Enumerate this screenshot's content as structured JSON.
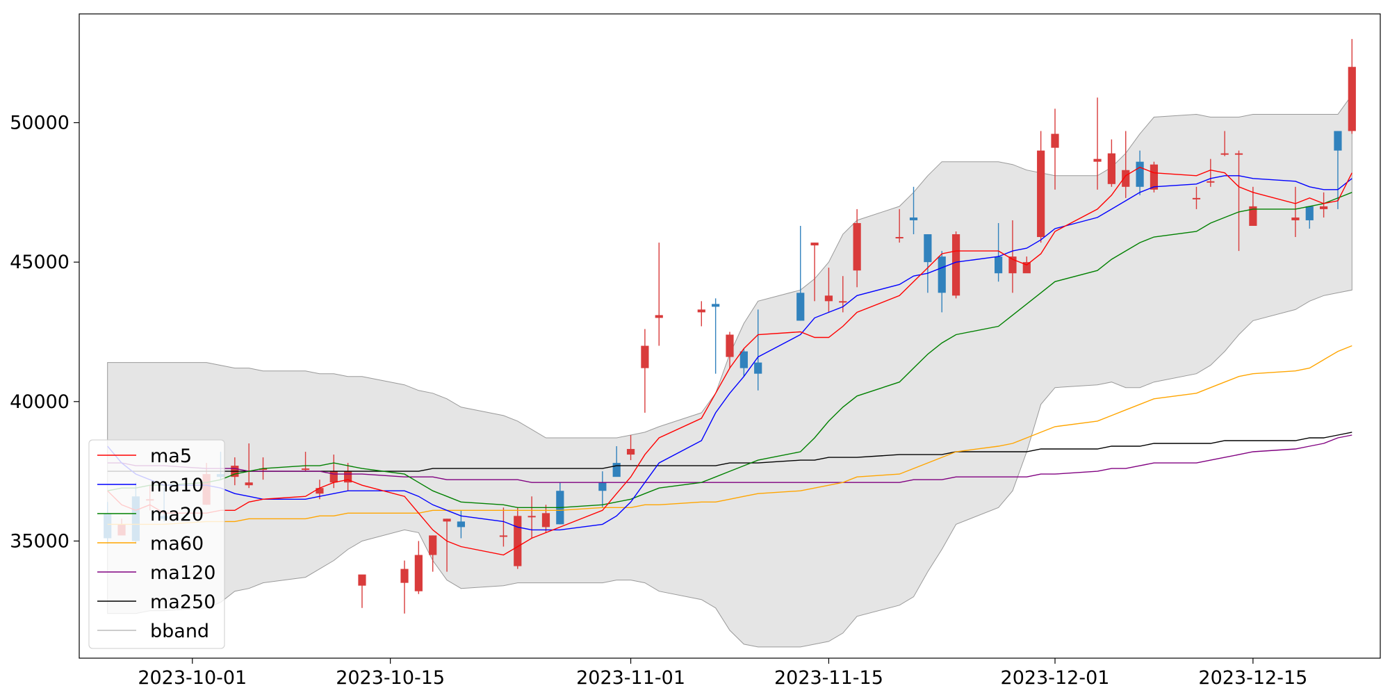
{
  "chart_data": {
    "type": "candlestick",
    "title": "",
    "xlabel": "",
    "ylabel": "",
    "x_range": [
      "2023-09-23",
      "2023-12-24"
    ],
    "ylim": [
      30800,
      53900
    ],
    "grid": false,
    "legend_position": "lower-left",
    "colors": {
      "up": "#d93b3b",
      "down": "#3182bd",
      "band_fill": "#e5e5e5",
      "band_edge": "#999999",
      "ma5": "#ff0000",
      "ma10": "#0000ff",
      "ma20": "#008000",
      "ma60": "#ffa500",
      "ma120": "#800080",
      "ma250": "#000000"
    },
    "x_ticks": [
      "2023-10-01",
      "2023-10-15",
      "2023-11-01",
      "2023-11-15",
      "2023-12-01",
      "2023-12-15"
    ],
    "y_ticks": [
      35000,
      40000,
      45000,
      50000
    ],
    "y_tick_labels": [
      "35000",
      "40000",
      "45000",
      "50000"
    ],
    "legend": [
      "ma5",
      "ma10",
      "ma20",
      "ma60",
      "ma120",
      "ma250",
      "bband"
    ],
    "dates": [
      "2023-09-25",
      "2023-09-26",
      "2023-09-27",
      "2023-09-28",
      "2023-09-29",
      "2023-10-02",
      "2023-10-03",
      "2023-10-04",
      "2023-10-05",
      "2023-10-06",
      "2023-10-09",
      "2023-10-10",
      "2023-10-11",
      "2023-10-12",
      "2023-10-13",
      "2023-10-16",
      "2023-10-17",
      "2023-10-18",
      "2023-10-19",
      "2023-10-20",
      "2023-10-23",
      "2023-10-24",
      "2023-10-25",
      "2023-10-26",
      "2023-10-27",
      "2023-10-30",
      "2023-10-31",
      "2023-11-01",
      "2023-11-02",
      "2023-11-03",
      "2023-11-06",
      "2023-11-07",
      "2023-11-08",
      "2023-11-09",
      "2023-11-10",
      "2023-11-13",
      "2023-11-14",
      "2023-11-15",
      "2023-11-16",
      "2023-11-17",
      "2023-11-20",
      "2023-11-21",
      "2023-11-22",
      "2023-11-23",
      "2023-11-24",
      "2023-11-27",
      "2023-11-28",
      "2023-11-29",
      "2023-11-30",
      "2023-12-01",
      "2023-12-04",
      "2023-12-05",
      "2023-12-06",
      "2023-12-07",
      "2023-12-08",
      "2023-12-11",
      "2023-12-12",
      "2023-12-13",
      "2023-12-14",
      "2023-12-15",
      "2023-12-18",
      "2023-12-19",
      "2023-12-20",
      "2023-12-21",
      "2023-12-22"
    ],
    "open": [
      36000,
      35200,
      36600,
      36500,
      35900,
      36300,
      37400,
      37300,
      37000,
      37600,
      37600,
      36700,
      37100,
      37100,
      33400,
      33500,
      33200,
      34500,
      35700,
      35700,
      35200,
      34100,
      35900,
      35500,
      36800,
      37100,
      37800,
      38100,
      41200,
      43000,
      43200,
      43500,
      41600,
      41800,
      41400,
      43900,
      45600,
      43600,
      43600,
      44700,
      45900,
      46600,
      46000,
      45200,
      43800,
      45200,
      44600,
      44600,
      45900,
      49100,
      48600,
      47800,
      47700,
      48600,
      47600,
      47300,
      47900,
      48900,
      48900,
      46300,
      46500,
      47000,
      46900,
      49700,
      49700
    ],
    "close": [
      35100,
      35600,
      35000,
      36500,
      35800,
      37400,
      37300,
      37700,
      37100,
      37600,
      37600,
      36900,
      37500,
      37500,
      33800,
      34000,
      34500,
      35200,
      35800,
      35500,
      35200,
      35900,
      35900,
      36000,
      35600,
      36800,
      37300,
      38300,
      42000,
      43100,
      43300,
      43400,
      42400,
      41200,
      41000,
      42900,
      45700,
      43800,
      43600,
      46400,
      45900,
      46500,
      45000,
      43900,
      46000,
      44600,
      45200,
      45000,
      49000,
      49600,
      48700,
      48900,
      48300,
      47700,
      48500,
      47300,
      47900,
      48900,
      48900,
      47000,
      46600,
      46500,
      47000,
      49000,
      52000
    ],
    "high": [
      36400,
      35800,
      37100,
      37000,
      36900,
      37800,
      38200,
      38000,
      38500,
      38000,
      38200,
      37200,
      38100,
      37800,
      33600,
      34300,
      35000,
      35200,
      35800,
      36100,
      36200,
      36200,
      36600,
      36300,
      37100,
      37500,
      38400,
      38800,
      42600,
      45700,
      43600,
      43700,
      42500,
      41900,
      43300,
      46300,
      45700,
      44800,
      44500,
      46900,
      46900,
      47700,
      46000,
      45400,
      46100,
      46400,
      46500,
      45200,
      49700,
      50500,
      50900,
      49400,
      49700,
      49000,
      48600,
      47700,
      48700,
      49700,
      49000,
      47700,
      47700,
      46900,
      47500,
      49700,
      53000
    ],
    "low": [
      34900,
      35200,
      34900,
      36100,
      35700,
      36300,
      37200,
      37000,
      36900,
      37200,
      37500,
      36500,
      36900,
      36800,
      32600,
      32400,
      33100,
      33900,
      33900,
      35100,
      34800,
      34000,
      35100,
      35300,
      35600,
      36200,
      37400,
      37900,
      39600,
      42000,
      42700,
      41000,
      41200,
      40900,
      40400,
      42900,
      43600,
      43200,
      43200,
      44100,
      45700,
      46000,
      43900,
      43200,
      43700,
      44300,
      43900,
      44700,
      45700,
      47600,
      47600,
      47700,
      47300,
      47400,
      47500,
      46900,
      47700,
      48800,
      45400,
      46300,
      45900,
      46200,
      46600,
      46900,
      49600
    ],
    "ma5": [
      36800,
      36300,
      36100,
      36300,
      36000,
      36000,
      36100,
      36100,
      36400,
      36500,
      36600,
      36900,
      37100,
      37200,
      37000,
      36600,
      36000,
      35400,
      35000,
      34800,
      34500,
      34800,
      35100,
      35300,
      35500,
      36100,
      36700,
      37300,
      38100,
      38700,
      39400,
      40300,
      41200,
      41900,
      42400,
      42500,
      42300,
      42300,
      42700,
      43200,
      43800,
      44300,
      44800,
      45300,
      45400,
      45400,
      45100,
      44900,
      45300,
      46100,
      46900,
      47400,
      48100,
      48400,
      48200,
      48100,
      48300,
      48200,
      47700,
      47500,
      47100,
      47300,
      47100,
      47200,
      48200
    ],
    "ma10": [
      38400,
      37800,
      37400,
      37200,
      37000,
      37000,
      36900,
      36700,
      36600,
      36500,
      36500,
      36600,
      36700,
      36800,
      36800,
      36800,
      36600,
      36300,
      36100,
      35900,
      35700,
      35500,
      35400,
      35400,
      35400,
      35600,
      35900,
      36400,
      37100,
      37800,
      38600,
      39600,
      40300,
      40900,
      41600,
      42400,
      43000,
      43200,
      43400,
      43800,
      44200,
      44500,
      44600,
      44800,
      45000,
      45200,
      45400,
      45500,
      45800,
      46200,
      46600,
      46900,
      47200,
      47500,
      47700,
      47800,
      48000,
      48100,
      48100,
      48000,
      47900,
      47700,
      47600,
      47600,
      48000
    ],
    "ma20": [
      36800,
      36900,
      36900,
      37000,
      37000,
      37100,
      37200,
      37400,
      37500,
      37600,
      37700,
      37700,
      37800,
      37700,
      37600,
      37400,
      37100,
      36800,
      36600,
      36400,
      36300,
      36200,
      36200,
      36200,
      36200,
      36300,
      36400,
      36500,
      36700,
      36900,
      37100,
      37300,
      37500,
      37700,
      37900,
      38200,
      38700,
      39300,
      39800,
      40200,
      40700,
      41200,
      41700,
      42100,
      42400,
      42700,
      43100,
      43500,
      43900,
      44300,
      44700,
      45100,
      45400,
      45700,
      45900,
      46100,
      46400,
      46600,
      46800,
      46900,
      46900,
      47000,
      47100,
      47300,
      47500
    ],
    "ma60": [
      35600,
      35600,
      35600,
      35600,
      35600,
      35700,
      35700,
      35700,
      35800,
      35800,
      35800,
      35900,
      35900,
      36000,
      36000,
      36000,
      36000,
      36100,
      36100,
      36100,
      36100,
      36100,
      36100,
      36100,
      36100,
      36200,
      36200,
      36200,
      36300,
      36300,
      36400,
      36400,
      36500,
      36600,
      36700,
      36800,
      36900,
      37000,
      37100,
      37300,
      37400,
      37600,
      37800,
      38000,
      38200,
      38400,
      38500,
      38700,
      38900,
      39100,
      39300,
      39500,
      39700,
      39900,
      40100,
      40300,
      40500,
      40700,
      40900,
      41000,
      41100,
      41200,
      41500,
      41800,
      42000
    ],
    "ma120": [
      37800,
      37800,
      37700,
      37700,
      37700,
      37600,
      37600,
      37600,
      37500,
      37500,
      37500,
      37500,
      37400,
      37400,
      37400,
      37300,
      37300,
      37300,
      37200,
      37200,
      37200,
      37200,
      37100,
      37100,
      37100,
      37100,
      37100,
      37100,
      37100,
      37100,
      37100,
      37100,
      37100,
      37100,
      37100,
      37100,
      37100,
      37100,
      37100,
      37100,
      37100,
      37200,
      37200,
      37200,
      37300,
      37300,
      37300,
      37300,
      37400,
      37400,
      37500,
      37600,
      37600,
      37700,
      37800,
      37800,
      37900,
      38000,
      38100,
      38200,
      38300,
      38400,
      38500,
      38700,
      38800
    ],
    "ma250": [
      37500,
      37500,
      37500,
      37500,
      37500,
      37500,
      37500,
      37500,
      37500,
      37500,
      37500,
      37500,
      37500,
      37500,
      37500,
      37500,
      37500,
      37600,
      37600,
      37600,
      37600,
      37600,
      37600,
      37600,
      37600,
      37600,
      37700,
      37700,
      37700,
      37700,
      37700,
      37700,
      37800,
      37800,
      37800,
      37900,
      37900,
      38000,
      38000,
      38000,
      38100,
      38100,
      38100,
      38100,
      38200,
      38200,
      38200,
      38200,
      38300,
      38300,
      38300,
      38400,
      38400,
      38400,
      38500,
      38500,
      38500,
      38600,
      38600,
      38600,
      38600,
      38700,
      38700,
      38800,
      38900
    ],
    "bb_upper": [
      41400,
      41400,
      41400,
      41400,
      41400,
      41400,
      41300,
      41200,
      41200,
      41100,
      41100,
      41000,
      41000,
      40900,
      40900,
      40600,
      40400,
      40300,
      40100,
      39800,
      39500,
      39300,
      39000,
      38700,
      38700,
      38700,
      38700,
      38800,
      38900,
      39100,
      39600,
      40300,
      41700,
      42800,
      43600,
      44000,
      44400,
      45000,
      46000,
      46500,
      47000,
      47500,
      48100,
      48600,
      48600,
      48600,
      48500,
      48300,
      48200,
      48100,
      48100,
      48400,
      48900,
      49600,
      50200,
      50300,
      50200,
      50200,
      50200,
      50300,
      50300,
      50300,
      50300,
      50300,
      51000
    ],
    "bb_lower": [
      32400,
      32400,
      32400,
      32500,
      32500,
      32600,
      32800,
      33200,
      33300,
      33500,
      33700,
      34000,
      34300,
      34700,
      35000,
      35400,
      35300,
      34300,
      33600,
      33300,
      33400,
      33500,
      33500,
      33500,
      33500,
      33500,
      33600,
      33600,
      33500,
      33200,
      32900,
      32600,
      31800,
      31300,
      31200,
      31200,
      31300,
      31400,
      31700,
      32300,
      32700,
      33000,
      33900,
      34700,
      35600,
      36200,
      36800,
      38200,
      39900,
      40500,
      40600,
      40700,
      40500,
      40500,
      40700,
      41000,
      41300,
      41800,
      42400,
      42900,
      43300,
      43600,
      43800,
      43900,
      44000
    ]
  }
}
